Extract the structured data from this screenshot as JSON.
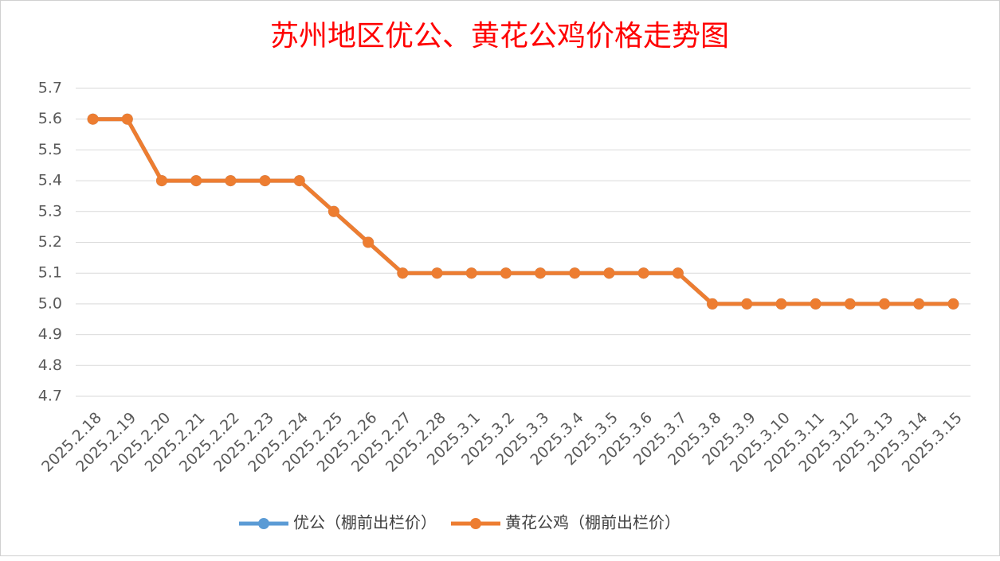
{
  "chart_data": {
    "type": "line",
    "title": "苏州地区优公、黄花公鸡价格走势图",
    "categories": [
      "2025.2.18",
      "2025.2.19",
      "2025.2.20",
      "2025.2.21",
      "2025.2.22",
      "2025.2.23",
      "2025.2.24",
      "2025.2.25",
      "2025.2.26",
      "2025.2.27",
      "2025.2.28",
      "2025.3.1",
      "2025.3.2",
      "2025.3.3",
      "2025.3.4",
      "2025.3.5",
      "2025.3.6",
      "2025.3.7",
      "2025.3.8",
      "2025.3.9",
      "2025.3.10",
      "2025.3.11",
      "2025.3.12",
      "2025.3.13",
      "2025.3.14",
      "2025.3.15"
    ],
    "series": [
      {
        "name": "优公（棚前出栏价）",
        "color": "#5b9bd5",
        "values": [
          5.6,
          5.6,
          5.4,
          5.4,
          5.4,
          5.4,
          5.4,
          5.3,
          5.2,
          5.1,
          5.1,
          5.1,
          5.1,
          5.1,
          5.1,
          5.1,
          5.1,
          5.1,
          5.0,
          5.0,
          5.0,
          5.0,
          5.0,
          5.0,
          5.0,
          5.0
        ]
      },
      {
        "name": "黄花公鸡（棚前出栏价）",
        "color": "#ed7d31",
        "values": [
          5.6,
          5.6,
          5.4,
          5.4,
          5.4,
          5.4,
          5.4,
          5.3,
          5.2,
          5.1,
          5.1,
          5.1,
          5.1,
          5.1,
          5.1,
          5.1,
          5.1,
          5.1,
          5.0,
          5.0,
          5.0,
          5.0,
          5.0,
          5.0,
          5.0,
          5.0
        ]
      }
    ],
    "ylim": [
      4.7,
      5.7
    ],
    "yticks": [
      4.7,
      4.8,
      4.9,
      {
        "value": 5.0,
        "label": "5.0"
      },
      5.1,
      5.2,
      5.3,
      5.4,
      5.5,
      5.6,
      5.7
    ],
    "grid": true,
    "legend": "bottom"
  }
}
